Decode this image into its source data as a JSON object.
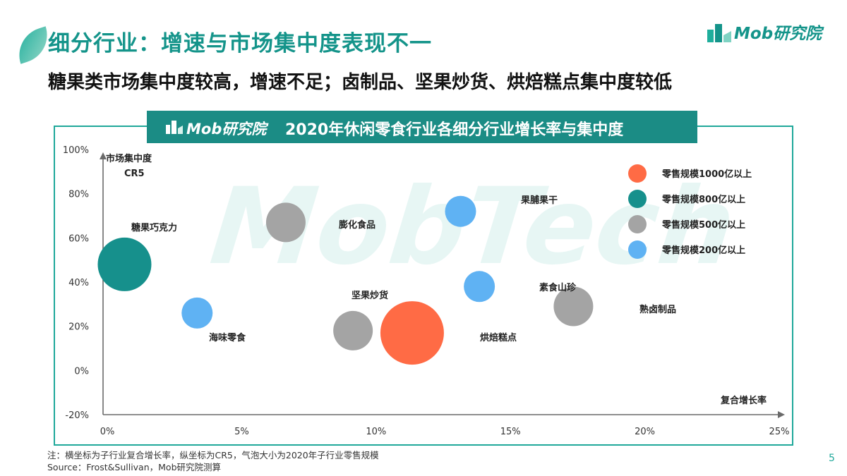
{
  "page": {
    "title": "细分行业：增速与市场集中度表现不一",
    "subtitle": "糖果类市场集中度较高，增速不足；卤制品、坚果炒货、烘焙糕点集中度较低",
    "brand": "Mob研究院",
    "page_number": "5",
    "footnote_1": "注：横坐标为子行业复合增长率，纵坐标为CR5，气泡大小为2020年子行业零售规模",
    "footnote_2": "Source：Frost&Sullivan，Mob研究院测算",
    "watermark": "MobTech"
  },
  "chart_data": {
    "type": "scatter",
    "title": "2020年休闲零食行业各细分行业增长率与集中度",
    "header_brand": "Mob研究院",
    "ylabel_line1": "市场集中度",
    "ylabel_line2": "CR5",
    "xlabel": "复合增长率",
    "xlim": [
      0,
      25
    ],
    "ylim": [
      -20,
      100
    ],
    "x_ticks": [
      "0%",
      "5%",
      "10%",
      "15%",
      "20%",
      "25%"
    ],
    "x_tick_values": [
      0,
      5,
      10,
      15,
      20,
      25
    ],
    "y_ticks": [
      "100%",
      "80%",
      "60%",
      "40%",
      "20%",
      "0%",
      "-20%"
    ],
    "y_tick_values": [
      100,
      80,
      60,
      40,
      20,
      0,
      -20
    ],
    "legend": [
      {
        "label": "零售规模1000亿以上",
        "color": "#ff6b45"
      },
      {
        "label": "零售规模800亿以上",
        "color": "#16908c"
      },
      {
        "label": "零售规模500亿以上",
        "color": "#a4a4a4"
      },
      {
        "label": "零售规模200亿以上",
        "color": "#5fb2f3"
      }
    ],
    "points": [
      {
        "name": "糖果巧克力",
        "x": 0.8,
        "y": 48,
        "size_class": "800亿以上",
        "color": "#16908c"
      },
      {
        "name": "海味零食",
        "x": 3.5,
        "y": 26,
        "size_class": "200亿以上",
        "color": "#5fb2f3"
      },
      {
        "name": "膨化食品",
        "x": 6.8,
        "y": 67,
        "size_class": "500亿以上",
        "color": "#a4a4a4"
      },
      {
        "name": "坚果炒货",
        "x": 9.3,
        "y": 18,
        "size_class": "500亿以上",
        "color": "#a4a4a4"
      },
      {
        "name": "烘焙糕点",
        "x": 11.5,
        "y": 17,
        "size_class": "1000亿以上",
        "color": "#ff6b45"
      },
      {
        "name": "果脯果干",
        "x": 13.3,
        "y": 72,
        "size_class": "200亿以上",
        "color": "#5fb2f3"
      },
      {
        "name": "素食山珍",
        "x": 14.0,
        "y": 38,
        "size_class": "200亿以上",
        "color": "#5fb2f3"
      },
      {
        "name": "熟卤制品",
        "x": 17.5,
        "y": 29,
        "size_class": "500亿以上",
        "color": "#a4a4a4"
      }
    ]
  }
}
